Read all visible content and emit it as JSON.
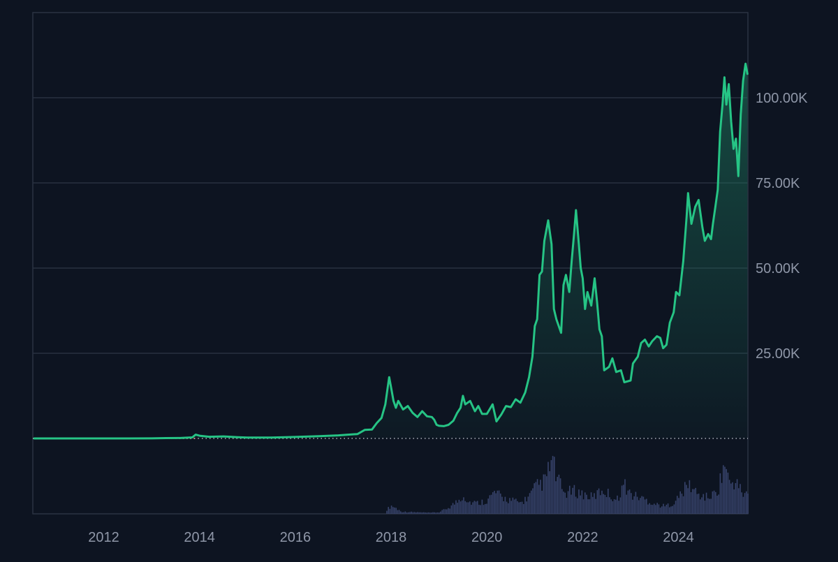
{
  "colors": {
    "background": "#0d1421",
    "frame": "#2b3342",
    "grid": "#283040",
    "price_line": "#26c485",
    "area_top": "#1e7a5e",
    "volume": "#3a4670",
    "tick_text": "#8f97a8",
    "baseline_dots": "#c8ccd6",
    "baseline_red": "#e5484d"
  },
  "chart_data": {
    "type": "area",
    "title": "",
    "xlabel": "",
    "ylabel": "",
    "x_ticks": [
      "2012",
      "2014",
      "2016",
      "2018",
      "2020",
      "2022",
      "2024"
    ],
    "y_ticks": [
      {
        "value": 25000,
        "label": "25.00K"
      },
      {
        "value": 50000,
        "label": "50.00K"
      },
      {
        "value": 75000,
        "label": "75.00K"
      },
      {
        "value": 100000,
        "label": "100.00K"
      }
    ],
    "xlim": [
      2010.52,
      2025.45
    ],
    "ylim": [
      0,
      125000
    ],
    "grid": true,
    "legend": "none",
    "series": [
      {
        "kind": "price",
        "points": [
          [
            2010.55,
            0
          ],
          [
            2011.5,
            5
          ],
          [
            2012.5,
            10
          ],
          [
            2013.0,
            20
          ],
          [
            2013.3,
            100
          ],
          [
            2013.6,
            130
          ],
          [
            2013.85,
            300
          ],
          [
            2013.92,
            1100
          ],
          [
            2014.0,
            800
          ],
          [
            2014.2,
            500
          ],
          [
            2014.5,
            600
          ],
          [
            2014.8,
            350
          ],
          [
            2015.0,
            250
          ],
          [
            2015.5,
            260
          ],
          [
            2016.0,
            430
          ],
          [
            2016.5,
            650
          ],
          [
            2016.9,
            900
          ],
          [
            2017.0,
            1000
          ],
          [
            2017.3,
            1300
          ],
          [
            2017.45,
            2500
          ],
          [
            2017.6,
            2600
          ],
          [
            2017.7,
            4500
          ],
          [
            2017.8,
            6000
          ],
          [
            2017.88,
            10000
          ],
          [
            2017.93,
            15000
          ],
          [
            2017.96,
            18000
          ],
          [
            2018.0,
            15000
          ],
          [
            2018.05,
            11000
          ],
          [
            2018.1,
            9000
          ],
          [
            2018.15,
            11000
          ],
          [
            2018.25,
            8500
          ],
          [
            2018.35,
            9500
          ],
          [
            2018.45,
            7500
          ],
          [
            2018.55,
            6300
          ],
          [
            2018.65,
            8000
          ],
          [
            2018.75,
            6500
          ],
          [
            2018.85,
            6300
          ],
          [
            2018.9,
            5500
          ],
          [
            2018.95,
            4000
          ],
          [
            2019.0,
            3700
          ],
          [
            2019.1,
            3600
          ],
          [
            2019.2,
            4000
          ],
          [
            2019.3,
            5200
          ],
          [
            2019.38,
            7500
          ],
          [
            2019.45,
            9000
          ],
          [
            2019.5,
            12500
          ],
          [
            2019.55,
            10000
          ],
          [
            2019.65,
            11000
          ],
          [
            2019.75,
            8000
          ],
          [
            2019.82,
            9500
          ],
          [
            2019.9,
            7200
          ],
          [
            2020.0,
            7200
          ],
          [
            2020.12,
            10000
          ],
          [
            2020.2,
            5000
          ],
          [
            2020.3,
            7000
          ],
          [
            2020.4,
            9500
          ],
          [
            2020.5,
            9200
          ],
          [
            2020.6,
            11500
          ],
          [
            2020.7,
            10500
          ],
          [
            2020.8,
            13500
          ],
          [
            2020.88,
            18000
          ],
          [
            2020.95,
            24000
          ],
          [
            2021.0,
            33000
          ],
          [
            2021.05,
            35000
          ],
          [
            2021.1,
            48000
          ],
          [
            2021.15,
            49000
          ],
          [
            2021.2,
            58000
          ],
          [
            2021.28,
            64000
          ],
          [
            2021.35,
            57000
          ],
          [
            2021.4,
            38000
          ],
          [
            2021.45,
            35000
          ],
          [
            2021.5,
            33000
          ],
          [
            2021.55,
            31000
          ],
          [
            2021.6,
            45000
          ],
          [
            2021.65,
            48000
          ],
          [
            2021.72,
            43000
          ],
          [
            2021.77,
            52000
          ],
          [
            2021.82,
            60000
          ],
          [
            2021.86,
            67000
          ],
          [
            2021.92,
            57000
          ],
          [
            2021.96,
            50000
          ],
          [
            2022.0,
            47000
          ],
          [
            2022.05,
            38000
          ],
          [
            2022.1,
            43000
          ],
          [
            2022.18,
            39000
          ],
          [
            2022.25,
            47000
          ],
          [
            2022.3,
            40000
          ],
          [
            2022.35,
            32000
          ],
          [
            2022.4,
            30000
          ],
          [
            2022.45,
            20000
          ],
          [
            2022.55,
            21000
          ],
          [
            2022.62,
            23500
          ],
          [
            2022.7,
            19500
          ],
          [
            2022.8,
            20000
          ],
          [
            2022.87,
            16500
          ],
          [
            2022.95,
            16800
          ],
          [
            2023.0,
            17000
          ],
          [
            2023.05,
            22000
          ],
          [
            2023.15,
            24000
          ],
          [
            2023.22,
            28000
          ],
          [
            2023.3,
            29000
          ],
          [
            2023.38,
            27000
          ],
          [
            2023.45,
            28500
          ],
          [
            2023.55,
            30000
          ],
          [
            2023.62,
            29500
          ],
          [
            2023.68,
            26500
          ],
          [
            2023.75,
            27500
          ],
          [
            2023.82,
            34000
          ],
          [
            2023.9,
            37000
          ],
          [
            2023.95,
            43000
          ],
          [
            2024.02,
            42000
          ],
          [
            2024.1,
            52000
          ],
          [
            2024.17,
            65000
          ],
          [
            2024.2,
            72000
          ],
          [
            2024.27,
            63000
          ],
          [
            2024.35,
            68000
          ],
          [
            2024.42,
            70000
          ],
          [
            2024.5,
            62000
          ],
          [
            2024.55,
            58000
          ],
          [
            2024.62,
            60000
          ],
          [
            2024.68,
            58500
          ],
          [
            2024.72,
            63000
          ],
          [
            2024.77,
            68000
          ],
          [
            2024.82,
            73000
          ],
          [
            2024.87,
            90000
          ],
          [
            2024.92,
            98000
          ],
          [
            2024.96,
            106000
          ],
          [
            2025.0,
            98000
          ],
          [
            2025.05,
            104000
          ],
          [
            2025.1,
            93000
          ],
          [
            2025.15,
            85000
          ],
          [
            2025.2,
            88000
          ],
          [
            2025.25,
            77000
          ],
          [
            2025.3,
            95000
          ],
          [
            2025.35,
            105000
          ],
          [
            2025.4,
            110000
          ],
          [
            2025.44,
            107000
          ]
        ]
      },
      {
        "kind": "volume",
        "points": [
          [
            2017.9,
            8
          ],
          [
            2018.0,
            15
          ],
          [
            2018.1,
            10
          ],
          [
            2018.2,
            4
          ],
          [
            2018.5,
            3
          ],
          [
            2018.8,
            2
          ],
          [
            2019.0,
            3
          ],
          [
            2019.2,
            12
          ],
          [
            2019.4,
            25
          ],
          [
            2019.5,
            35
          ],
          [
            2019.6,
            22
          ],
          [
            2019.8,
            20
          ],
          [
            2020.0,
            25
          ],
          [
            2020.15,
            40
          ],
          [
            2020.3,
            30
          ],
          [
            2020.5,
            25
          ],
          [
            2020.7,
            20
          ],
          [
            2020.9,
            35
          ],
          [
            2021.0,
            48
          ],
          [
            2021.1,
            55
          ],
          [
            2021.2,
            60
          ],
          [
            2021.35,
            100
          ],
          [
            2021.45,
            65
          ],
          [
            2021.6,
            38
          ],
          [
            2021.8,
            42
          ],
          [
            2021.9,
            40
          ],
          [
            2022.0,
            36
          ],
          [
            2022.2,
            30
          ],
          [
            2022.4,
            45
          ],
          [
            2022.6,
            32
          ],
          [
            2022.7,
            25
          ],
          [
            2022.85,
            55
          ],
          [
            2023.0,
            35
          ],
          [
            2023.2,
            30
          ],
          [
            2023.5,
            18
          ],
          [
            2023.7,
            14
          ],
          [
            2023.9,
            20
          ],
          [
            2024.0,
            32
          ],
          [
            2024.2,
            55
          ],
          [
            2024.4,
            35
          ],
          [
            2024.6,
            30
          ],
          [
            2024.8,
            40
          ],
          [
            2024.9,
            75
          ],
          [
            2024.96,
            95
          ],
          [
            2025.05,
            55
          ],
          [
            2025.15,
            60
          ],
          [
            2025.25,
            50
          ],
          [
            2025.35,
            35
          ],
          [
            2025.44,
            40
          ]
        ]
      }
    ]
  }
}
